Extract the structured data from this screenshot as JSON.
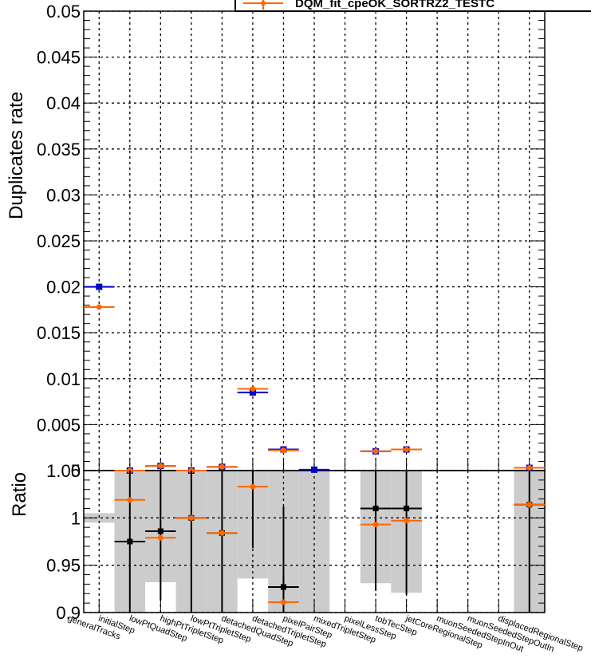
{
  "chart_data": [
    {
      "type": "scatter",
      "panel": "top",
      "ylabel": "Duplicates rate",
      "ylim": [
        0,
        0.05
      ],
      "yticks": [
        "0",
        "0.005",
        "0.01",
        "0.015",
        "0.02",
        "0.025",
        "0.03",
        "0.035",
        "0.04",
        "0.045",
        "0.05"
      ],
      "grid": true,
      "legend_placement": "top-right",
      "categories": [
        "generalTracks",
        "initialStep",
        "lowPtQuadStep",
        "highPtTripletStep",
        "lowPtTripletStep",
        "detachedQuadStep",
        "detachedTripletStep",
        "pixelPairStep",
        "mixedTripletStep",
        "pixelLessStep",
        "tobTecStep",
        "jetCoreRegionalStep",
        "muonSeededStepInOut",
        "muonSeededStepOutIn",
        "displacedRegionalStep"
      ],
      "series": [
        {
          "name": "",
          "color": "#0000cc",
          "marker": "square",
          "values": [
            0.02,
            0.0,
            0.0005,
            0.0,
            0.0004,
            0.0085,
            0.0023,
            0.0001,
            null,
            0.0021,
            0.0023,
            null,
            null,
            null,
            0.0003
          ]
        },
        {
          "name": "DQM_fit_cpeOK_SORTRZ2_TESTC",
          "color": "#ff6600",
          "marker": "circle",
          "values": [
            0.0178,
            0.0,
            0.0005,
            0.0,
            0.0004,
            0.0089,
            0.0022,
            null,
            null,
            0.0021,
            0.0023,
            null,
            null,
            null,
            0.0003
          ]
        }
      ]
    },
    {
      "type": "scatter",
      "panel": "ratio",
      "ylabel": "Ratio",
      "ylim": [
        0.9,
        1.05
      ],
      "yticks": [
        "0.9",
        "0.95",
        "1",
        "1.05"
      ],
      "grid": true,
      "categories": [
        "generalTracks",
        "initialStep",
        "lowPtQuadStep",
        "highPtTripletStep",
        "lowPtTripletStep",
        "detachedQuadStep",
        "detachedTripletStep",
        "pixelPairStep",
        "mixedTripletStep",
        "pixelLessStep",
        "tobTecStep",
        "jetCoreRegionalStep",
        "muonSeededStepInOut",
        "muonSeededStepOutIn",
        "displacedRegionalStep"
      ],
      "uncertainty_band": [
        [
          0.995,
          1.005
        ],
        [
          0.9,
          1.05
        ],
        [
          0.932,
          1.05
        ],
        [
          0.9,
          1.05
        ],
        [
          0.9,
          1.05
        ],
        [
          0.936,
          1.05
        ],
        [
          0.9,
          1.05
        ],
        [
          0.9,
          1.05
        ],
        null,
        [
          0.931,
          1.05
        ],
        [
          0.921,
          1.05
        ],
        null,
        null,
        null,
        [
          0.9,
          1.05
        ]
      ],
      "series": [
        {
          "name": "",
          "color": "#000000",
          "marker": "square",
          "values": [
            null,
            0.975,
            0.986,
            1.0,
            0.984,
            null,
            0.927,
            null,
            null,
            1.01,
            1.01,
            null,
            null,
            null,
            1.014
          ],
          "errors": [
            null,
            [
              0.9,
              1.05
            ],
            [
              0.913,
              1.05
            ],
            [
              0.9,
              1.05
            ],
            [
              0.9,
              1.05
            ],
            null,
            [
              0.9,
              1.012
            ],
            null,
            null,
            [
              0.923,
              1.05
            ],
            [
              0.919,
              1.05
            ],
            null,
            null,
            null,
            [
              0.9,
              1.05
            ]
          ]
        },
        {
          "name": "",
          "color": "#ff6600",
          "marker": "circle",
          "values": [
            null,
            1.019,
            0.979,
            1.0,
            0.984,
            1.033,
            0.911,
            null,
            null,
            0.993,
            0.997,
            null,
            null,
            null,
            1.014
          ],
          "errors": [
            null,
            null,
            null,
            null,
            null,
            [
              0.968,
              1.05
            ],
            [
              0.9,
              0.94
            ],
            null,
            null,
            null,
            null,
            null,
            null,
            null,
            null
          ]
        }
      ]
    }
  ]
}
